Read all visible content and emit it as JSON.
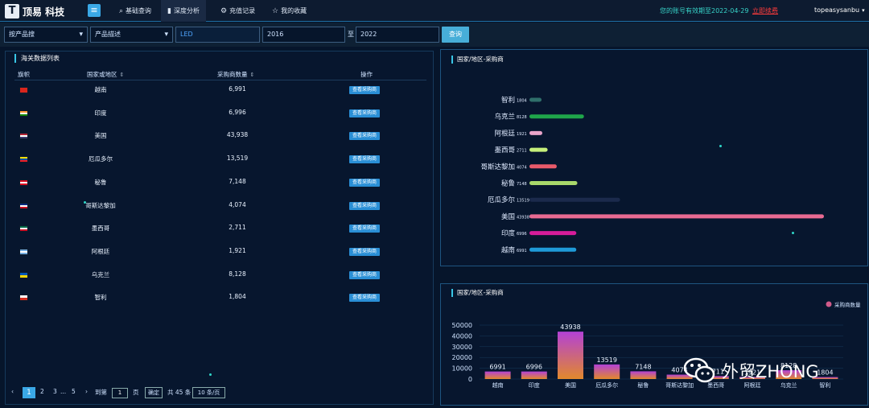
{
  "header": {
    "brand": "顶易 科技",
    "logo_letter": "T",
    "menu_icon": "≡",
    "nav": [
      {
        "label": "基础查询",
        "icon": "⌕"
      },
      {
        "label": "深度分析",
        "icon": "▮"
      },
      {
        "label": "充值记录",
        "icon": "⚙"
      },
      {
        "label": "我的收藏",
        "icon": "☆"
      }
    ],
    "expire_notice": "您的账号有效期至2022-04-29",
    "renew_link": "立即续费",
    "username": "topeasysanbu"
  },
  "search": {
    "type_select": "按产品搜",
    "desc_select": "产品描述",
    "keyword": "LED",
    "year_from": "2016",
    "to_label": "至",
    "year_to": "2022",
    "query_button": "查询"
  },
  "table": {
    "title": "海关数据列表",
    "headers": {
      "flag": "旗帜",
      "country": "国家或地区",
      "count": "采购商数量",
      "action": "操作"
    },
    "view_label": "查看采购商",
    "rows": [
      {
        "country": "越南",
        "count": "6,991",
        "flag": [
          "#da251d"
        ]
      },
      {
        "country": "印度",
        "count": "6,996",
        "flag": [
          "#ff9933",
          "#ffffff",
          "#138808"
        ]
      },
      {
        "country": "美国",
        "count": "43,938",
        "flag": [
          "#b22234",
          "#ffffff",
          "#3c3b6e"
        ]
      },
      {
        "country": "厄瓜多尔",
        "count": "13,519",
        "flag": [
          "#ffdd00",
          "#034ea2",
          "#ed1c24"
        ]
      },
      {
        "country": "秘鲁",
        "count": "7,148",
        "flag": [
          "#d91023",
          "#ffffff",
          "#d91023"
        ]
      },
      {
        "country": "哥斯达黎加",
        "count": "4,074",
        "flag": [
          "#002b7f",
          "#ffffff",
          "#ce1126"
        ]
      },
      {
        "country": "墨西哥",
        "count": "2,711",
        "flag": [
          "#006847",
          "#ffffff",
          "#ce1126"
        ]
      },
      {
        "country": "阿根廷",
        "count": "1,921",
        "flag": [
          "#74acdf",
          "#ffffff",
          "#74acdf"
        ]
      },
      {
        "country": "乌克兰",
        "count": "8,128",
        "flag": [
          "#0057b7",
          "#ffd700"
        ]
      },
      {
        "country": "智利",
        "count": "1,804",
        "flag": [
          "#ffffff",
          "#d52b1e"
        ]
      }
    ]
  },
  "pagination": {
    "prev": "‹",
    "pages": [
      "1",
      "2",
      "3",
      "...",
      "5"
    ],
    "next": "›",
    "jump_label": "到第",
    "jump_value": "1",
    "page_unit": "页",
    "confirm": "确定",
    "total": "共 45 条",
    "page_size": "10 条/页"
  },
  "chart_data": [
    {
      "type": "bar",
      "orientation": "horizontal",
      "title": "国家/地区-采购商",
      "categories": [
        "智利",
        "乌克兰",
        "阿根廷",
        "墨西哥",
        "哥斯达黎加",
        "秘鲁",
        "厄瓜多尔",
        "美国",
        "印度",
        "越南"
      ],
      "values": [
        1804,
        8128,
        1921,
        2711,
        4074,
        7148,
        13519,
        43938,
        6996,
        6991
      ],
      "colors": [
        "#2f6f6a",
        "#1fa64a",
        "#e9a4c9",
        "#c5ef7b",
        "#e85a6a",
        "#a8d86a",
        "#1b2a4c",
        "#e86a92",
        "#d61c9a",
        "#1f9ad8"
      ],
      "xlim": [
        0,
        43938
      ]
    },
    {
      "type": "bar",
      "title": "国家/地区-采购商",
      "legend": "采购商数量",
      "legend_position": "top-right",
      "categories": [
        "越南",
        "印度",
        "美国",
        "厄瓜多尔",
        "秘鲁",
        "哥斯达黎加",
        "墨西哥",
        "阿根廷",
        "乌克兰",
        "智利"
      ],
      "values": [
        6991,
        6996,
        43938,
        13519,
        7148,
        4074,
        2711,
        1921,
        8128,
        1804
      ],
      "yticks": [
        0,
        10000,
        20000,
        30000,
        40000,
        50000
      ],
      "ylim": [
        0,
        50000
      ]
    }
  ],
  "watermark": "外贸ZHONG"
}
